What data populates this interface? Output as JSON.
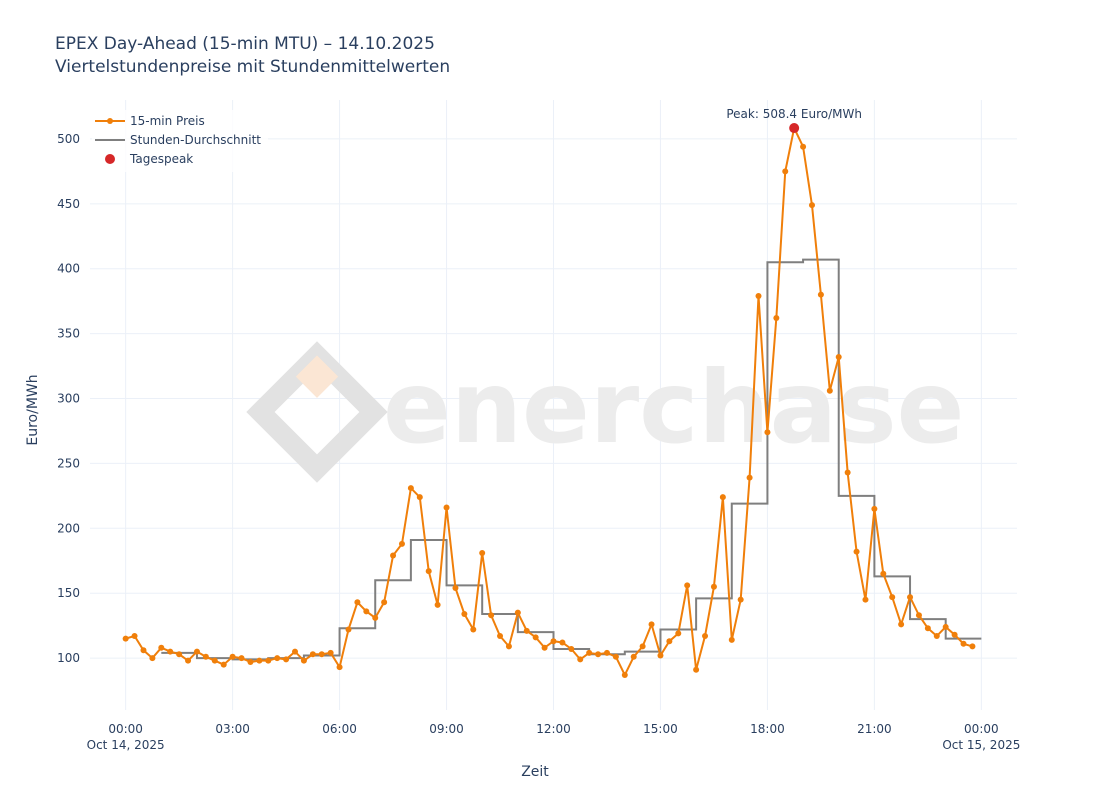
{
  "chart_data": {
    "type": "line",
    "title": "EPEX Day-Ahead (15-min MTU) – 14.10.2025",
    "subtitle": "Viertelstundenpreise mit Stundenmittelwerten",
    "xlabel": "Zeit",
    "ylabel": "Euro/MWh",
    "watermark": "enerchase",
    "x_range_hours": [
      -1,
      25
    ],
    "ylim": [
      60,
      530
    ],
    "y_ticks": [
      100,
      150,
      200,
      250,
      300,
      350,
      400,
      450,
      500
    ],
    "x_ticks": [
      {
        "h": 0,
        "label": "00:00",
        "sub": "Oct 14, 2025"
      },
      {
        "h": 3,
        "label": "03:00"
      },
      {
        "h": 6,
        "label": "06:00"
      },
      {
        "h": 9,
        "label": "09:00"
      },
      {
        "h": 12,
        "label": "12:00"
      },
      {
        "h": 15,
        "label": "15:00"
      },
      {
        "h": 18,
        "label": "18:00"
      },
      {
        "h": 21,
        "label": "21:00"
      },
      {
        "h": 24,
        "label": "00:00",
        "sub": "Oct 15, 2025"
      }
    ],
    "grid": true,
    "legend_position": "top-left",
    "series": [
      {
        "name": "15-min Preis",
        "color": "#f07f0a",
        "interval_hours": 0.25,
        "values": [
          115,
          117,
          106,
          100,
          108,
          105,
          103,
          98,
          105,
          101,
          98,
          95,
          101,
          100,
          97,
          98,
          98,
          100,
          99,
          105,
          98,
          103,
          103,
          104,
          93,
          122,
          143,
          136,
          131,
          143,
          179,
          188,
          231,
          224,
          167,
          141,
          216,
          154,
          134,
          122,
          181,
          133,
          117,
          109,
          135,
          121,
          116,
          108,
          113,
          112,
          107,
          99,
          104,
          103,
          104,
          101,
          87,
          101,
          109,
          126,
          102,
          113,
          119,
          156,
          91,
          117,
          155,
          224,
          114,
          145,
          239,
          379,
          274,
          362,
          475,
          508.4,
          494,
          449,
          380,
          306,
          332,
          243,
          182,
          145,
          215,
          165,
          147,
          126,
          147,
          133,
          123,
          117,
          124,
          118,
          111,
          109
        ]
      },
      {
        "name": "Stunden-Durchschnitt",
        "color": "#7f7f7f",
        "step_start_hour": 1,
        "values": [
          104,
          100,
          99,
          100,
          102,
          123,
          160,
          191,
          156,
          134,
          120,
          107,
          103,
          105,
          122,
          146,
          219,
          405,
          407,
          225,
          163,
          130,
          115
        ]
      }
    ],
    "peak": {
      "name": "Tagespeak",
      "hour": 18.75,
      "value": 508.4,
      "label": "Peak: 508.4 Euro/MWh",
      "color": "#d62728"
    }
  }
}
